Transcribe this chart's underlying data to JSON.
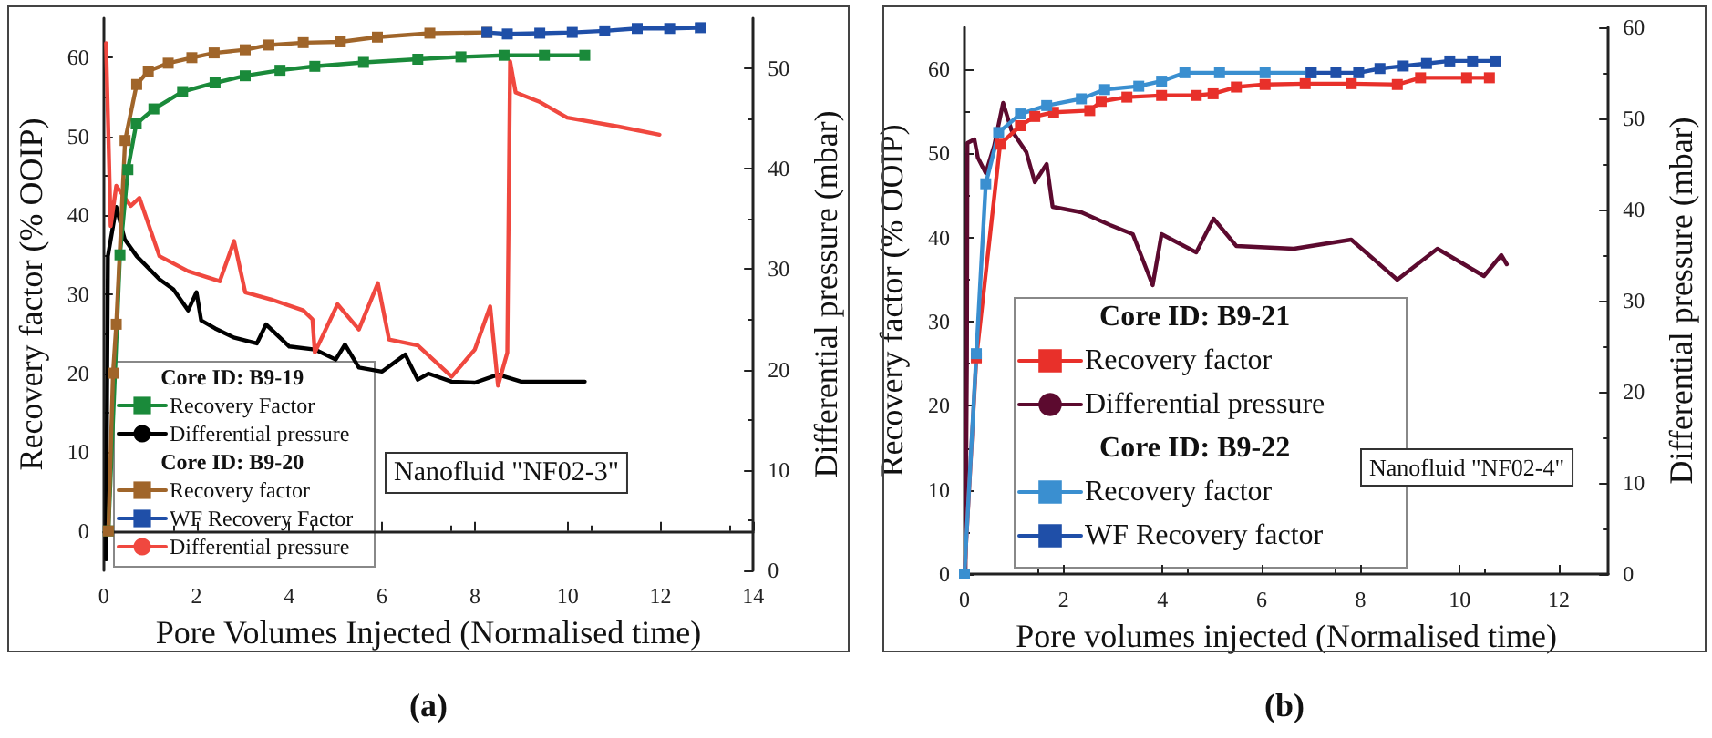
{
  "chart_data": [
    {
      "type": "line",
      "title": "(a)",
      "xlabel": "Pore Volumes Injected (Normalised time)",
      "ylabel": "Recovery factor (% OOIP)",
      "y2label": "Differential pressure (mbar)",
      "annotations": [
        "Core ID: B9-19",
        "Core ID: B9-20",
        "Nanofluid \"NF02-3\""
      ],
      "xlim": [
        0,
        14
      ],
      "xticks": [
        0,
        2,
        4,
        6,
        8,
        10,
        12,
        14
      ],
      "ylim": [
        -5,
        65
      ],
      "yticks": [
        0,
        10,
        20,
        30,
        40,
        50,
        60
      ],
      "y2lim": [
        0,
        55
      ],
      "y2ticks": [
        0,
        10,
        20,
        30,
        40,
        50
      ],
      "grid": false,
      "legend": "bottom left",
      "series": [
        {
          "name": "Recovery Factor",
          "color": "#1a8a3a",
          "marker": "square",
          "x": [
            0.1,
            0.35,
            0.52,
            0.7,
            1.08,
            1.7,
            2.4,
            3.05,
            3.8,
            4.55,
            5.6,
            6.77,
            7.7,
            8.63,
            9.5,
            10.37
          ],
          "values": [
            0,
            35,
            45.8,
            51.6,
            53.5,
            55.7,
            56.8,
            57.7,
            58.4,
            58.9,
            59.4,
            59.8,
            60.1,
            60.3,
            60.3,
            60.3
          ]
        },
        {
          "name": "Differential pressure",
          "color": "#000000",
          "marker": "none",
          "axis": "y2",
          "x": [
            0.05,
            0.09,
            0.27,
            0.45,
            0.71,
            1.2,
            1.5,
            1.82,
            2.0,
            2.1,
            2.4,
            2.8,
            3.3,
            3.5,
            4.0,
            4.55,
            5.0,
            5.2,
            5.5,
            6.0,
            6.5,
            6.77,
            7.0,
            7.5,
            8.0,
            8.5,
            9.0,
            10.37
          ],
          "values": [
            1.1,
            31.3,
            36.2,
            33.0,
            31.3,
            29.0,
            28.0,
            25.9,
            27.7,
            24.9,
            24.1,
            23.2,
            22.6,
            24.5,
            22.3,
            22.0,
            21.0,
            22.5,
            20.2,
            19.8,
            21.5,
            19.0,
            19.6,
            18.8,
            18.7,
            19.5,
            18.8,
            18.8
          ]
        },
        {
          "name": "Recovery factor",
          "color": "#a0652a",
          "marker": "square",
          "x": [
            0.1,
            0.2,
            0.27,
            0.46,
            0.71,
            0.96,
            1.39,
            1.9,
            2.38,
            3.05,
            3.56,
            4.3,
            5.1,
            5.9,
            7.03,
            8.26
          ],
          "values": [
            0,
            20,
            26.2,
            49.5,
            56.6,
            58.3,
            59.3,
            60.0,
            60.6,
            61.0,
            61.6,
            61.9,
            62.0,
            62.6,
            63.1,
            63.2
          ]
        },
        {
          "name": "WF Recovery Factor",
          "color": "#1f4fa8",
          "marker": "square",
          "x": [
            8.26,
            8.7,
            9.4,
            10.1,
            10.8,
            11.5,
            12.2,
            12.86
          ],
          "values": [
            63.2,
            63.0,
            63.1,
            63.2,
            63.4,
            63.7,
            63.7,
            63.8
          ]
        },
        {
          "name": "Differential pressure",
          "color": "#f0483f",
          "marker": "none",
          "axis": "y2",
          "x": [
            0.05,
            0.15,
            0.27,
            0.58,
            0.77,
            1.2,
            1.82,
            2.5,
            2.81,
            3.05,
            3.6,
            4.3,
            4.5,
            4.55,
            5.04,
            5.5,
            5.91,
            6.15,
            6.77,
            7.5,
            8.0,
            8.33,
            8.5,
            8.7,
            8.76,
            8.88,
            9.38,
            9.99,
            11.1,
            11.98
          ],
          "values": [
            52.5,
            34.3,
            38.3,
            36.3,
            37.1,
            31.3,
            29.8,
            28.8,
            32.8,
            27.7,
            27.0,
            25.9,
            25.0,
            21.7,
            26.5,
            24.0,
            28.6,
            23.0,
            22.4,
            19.3,
            22.0,
            26.3,
            18.4,
            21.7,
            50.7,
            47.6,
            46.7,
            45.1,
            44.2,
            43.4
          ]
        }
      ]
    },
    {
      "type": "line",
      "title": "(b)",
      "xlabel": "Pore volumes injected (Normalised time)",
      "ylabel": "Recovery factor (% OOIP)",
      "y2label": "Differential pressure (mbar)",
      "annotations": [
        "Core ID: B9-21",
        "Core ID: B9-22",
        "Nanofluid \"NF02-4\""
      ],
      "xlim": [
        0,
        13
      ],
      "xticks": [
        0,
        2,
        4,
        6,
        8,
        10,
        12
      ],
      "ylim": [
        0,
        65
      ],
      "yticks": [
        0,
        10,
        20,
        30,
        40,
        50,
        60
      ],
      "y2lim": [
        0,
        60
      ],
      "y2ticks": [
        0,
        10,
        20,
        30,
        40,
        50,
        60
      ],
      "grid": false,
      "legend": "left",
      "series": [
        {
          "name": "Recovery factor",
          "color": "#e8302a",
          "marker": "square",
          "x": [
            0,
            0.24,
            0.72,
            1.13,
            1.42,
            1.8,
            2.53,
            2.76,
            3.28,
            3.98,
            4.68,
            5.02,
            5.49,
            6.07,
            6.88,
            7.81,
            8.74,
            9.21,
            10.14,
            10.6
          ],
          "values": [
            0,
            25.7,
            51.1,
            53.3,
            54.4,
            54.9,
            55.1,
            56.2,
            56.7,
            56.9,
            56.9,
            57.1,
            57.9,
            58.2,
            58.3,
            58.3,
            58.2,
            59.0,
            59.0,
            59.0
          ]
        },
        {
          "name": "Differential pressure",
          "color": "#5c0a2f",
          "marker": "none",
          "axis": "y2",
          "x": [
            0.02,
            0.05,
            0.06,
            0.2,
            0.27,
            0.43,
            0.6,
            0.78,
            0.95,
            1.25,
            1.42,
            1.66,
            1.78,
            2.36,
            2.94,
            3.4,
            3.8,
            3.98,
            4.68,
            5.03,
            5.49,
            6.65,
            7.81,
            8.74,
            9.55,
            10.49,
            10.84,
            10.95
          ],
          "values": [
            0,
            23.7,
            47.3,
            47.7,
            45.7,
            44.0,
            47.0,
            51.7,
            48.7,
            46.3,
            43.0,
            45.0,
            40.3,
            39.7,
            38.3,
            37.3,
            31.7,
            37.3,
            35.3,
            39.0,
            36.0,
            35.7,
            36.7,
            32.3,
            35.7,
            32.7,
            35.0,
            34.0
          ]
        },
        {
          "name": "Recovery factor",
          "color": "#3a8fd0",
          "marker": "square",
          "x": [
            0,
            0.24,
            0.43,
            0.69,
            1.13,
            1.66,
            2.36,
            2.83,
            3.52,
            3.98,
            4.45,
            5.15,
            6.07,
            7.0
          ],
          "values": [
            0,
            26.2,
            46.4,
            52.5,
            54.7,
            55.7,
            56.5,
            57.6,
            58.0,
            58.6,
            59.6,
            59.6,
            59.6,
            59.6
          ]
        },
        {
          "name": "WF Recovery factor",
          "color": "#1f4fa8",
          "marker": "square",
          "x": [
            7.0,
            7.5,
            7.96,
            8.39,
            8.86,
            9.33,
            9.8,
            10.26,
            10.72
          ],
          "values": [
            59.6,
            59.6,
            59.6,
            60.1,
            60.4,
            60.7,
            61.0,
            61.0,
            61.0
          ]
        }
      ]
    }
  ]
}
